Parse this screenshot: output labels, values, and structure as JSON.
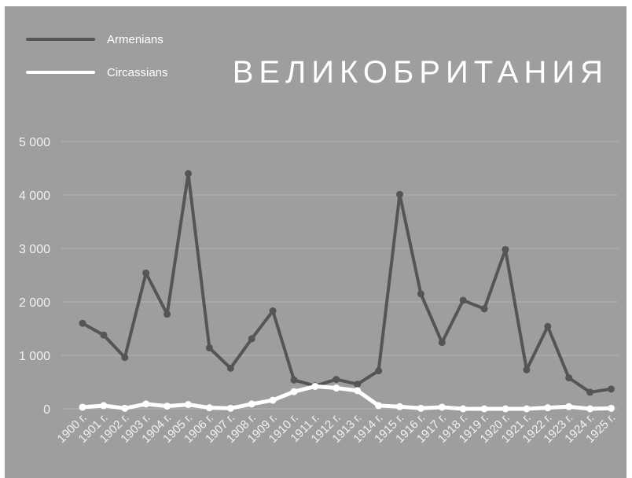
{
  "chart_data": {
    "type": "line",
    "title": "ВЕЛИКОБРИТАНИЯ",
    "xlabel": "",
    "ylabel": "",
    "categories": [
      "1900 г.",
      "1901 г.",
      "1902 г.",
      "1903 г.",
      "1904 г.",
      "1905 г.",
      "1906 г.",
      "1907 г.",
      "1908 г.",
      "1909 г.",
      "1910 г.",
      "1911 г.",
      "1912 г.",
      "1913 г.",
      "1914 г.",
      "1915 г.",
      "1916 г.",
      "1917 г.",
      "1918 г.",
      "1919 г.",
      "1920 г.",
      "1921 г.",
      "1922 г.",
      "1923 г.",
      "1924 г.",
      "1925 г."
    ],
    "ylim": [
      0,
      5000
    ],
    "yticks": [
      0,
      1000,
      2000,
      3000,
      4000,
      5000
    ],
    "ytick_labels": [
      "0",
      "1 000",
      "2 000",
      "3 000",
      "4 000",
      "5 000"
    ],
    "grid": true,
    "legend_position": "top-left",
    "series": [
      {
        "name": "Armenians",
        "color": "#555555",
        "values": [
          1600,
          1380,
          960,
          2540,
          1770,
          4400,
          1140,
          760,
          1310,
          1830,
          540,
          430,
          550,
          460,
          710,
          4010,
          2150,
          1240,
          2030,
          1870,
          2980,
          730,
          1540,
          580,
          310,
          370
        ]
      },
      {
        "name": "Circassians",
        "color": "#ffffff",
        "values": [
          30,
          60,
          10,
          90,
          50,
          80,
          20,
          10,
          90,
          160,
          320,
          420,
          390,
          340,
          60,
          40,
          10,
          30,
          0,
          0,
          0,
          0,
          20,
          40,
          0,
          10
        ]
      }
    ]
  },
  "colors": {
    "background": "#9e9e9e",
    "grid": "#b4b4b4",
    "axis_text": "#f2f2f2",
    "title": "#ffffff"
  }
}
